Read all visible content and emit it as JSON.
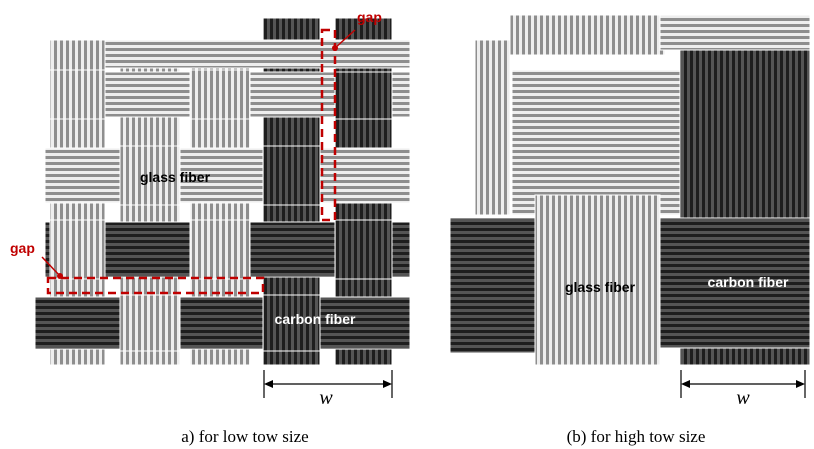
{
  "panels": [
    {
      "gap_labels": [
        "gap",
        "gap"
      ],
      "glass_label": "glass fiber",
      "carbon_label": "carbon fiber",
      "width_label": "w",
      "caption": "a) for low tow size"
    },
    {
      "glass_label": "glass fiber",
      "carbon_label": "carbon fiber",
      "width_label": "w",
      "caption": "(b) for high tow size"
    }
  ]
}
